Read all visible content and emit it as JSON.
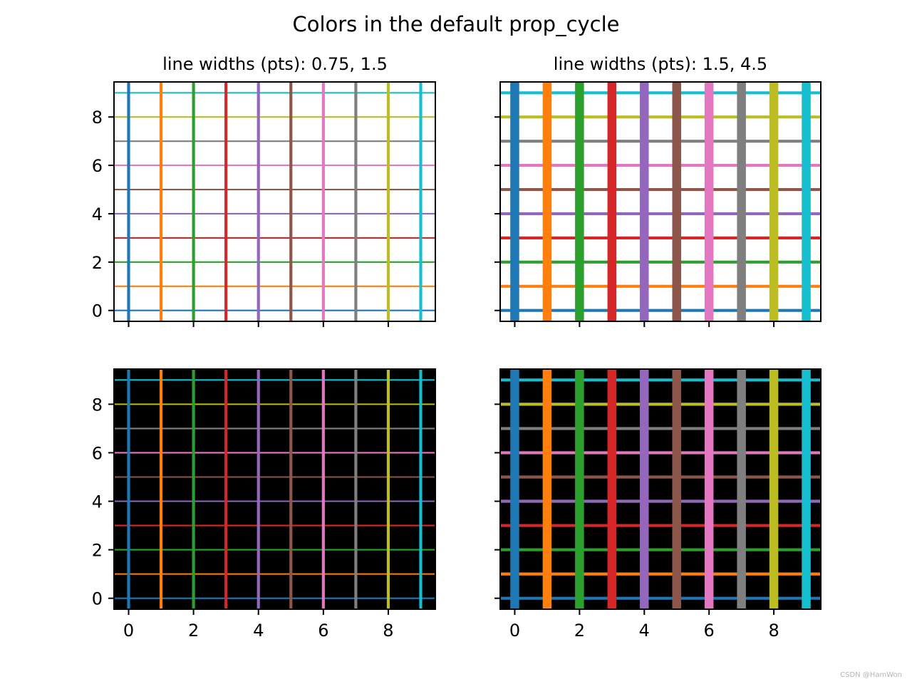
{
  "figure": {
    "title": "Colors in the default prop_cycle",
    "watermark": "CSDN @HamWon"
  },
  "chart_data": [
    {
      "type": "line",
      "title": "line widths (pts): 0.75, 1.5",
      "background": "#ffffff",
      "line_widths_pts": [
        0.75,
        1.5
      ],
      "colors": [
        "#1f77b4",
        "#ff7f0e",
        "#2ca02c",
        "#d62728",
        "#9467bd",
        "#8c564b",
        "#e377c2",
        "#7f7f7f",
        "#bcbd22",
        "#17becf"
      ],
      "hlines_y": [
        0,
        1,
        2,
        3,
        4,
        5,
        6,
        7,
        8,
        9
      ],
      "vlines_x": [
        0,
        1,
        2,
        3,
        4,
        5,
        6,
        7,
        8,
        9
      ],
      "xlim": [
        -0.45,
        9.45
      ],
      "ylim": [
        -0.45,
        9.45
      ],
      "xticks": [
        0,
        2,
        4,
        6,
        8
      ],
      "yticks": [
        0,
        2,
        4,
        6,
        8
      ],
      "show_xticklabels": false,
      "show_yticklabels": true
    },
    {
      "type": "line",
      "title": "line widths (pts): 1.5, 4.5",
      "background": "#ffffff",
      "line_widths_pts": [
        1.5,
        4.5
      ],
      "colors": [
        "#1f77b4",
        "#ff7f0e",
        "#2ca02c",
        "#d62728",
        "#9467bd",
        "#8c564b",
        "#e377c2",
        "#7f7f7f",
        "#bcbd22",
        "#17becf"
      ],
      "hlines_y": [
        0,
        1,
        2,
        3,
        4,
        5,
        6,
        7,
        8,
        9
      ],
      "vlines_x": [
        0,
        1,
        2,
        3,
        4,
        5,
        6,
        7,
        8,
        9
      ],
      "xlim": [
        -0.45,
        9.45
      ],
      "ylim": [
        -0.45,
        9.45
      ],
      "xticks": [
        0,
        2,
        4,
        6,
        8
      ],
      "yticks": [
        0,
        2,
        4,
        6,
        8
      ],
      "show_xticklabels": false,
      "show_yticklabels": false
    },
    {
      "type": "line",
      "title": "",
      "background": "#000000",
      "line_widths_pts": [
        0.75,
        1.5
      ],
      "colors": [
        "#1f77b4",
        "#ff7f0e",
        "#2ca02c",
        "#d62728",
        "#9467bd",
        "#8c564b",
        "#e377c2",
        "#7f7f7f",
        "#bcbd22",
        "#17becf"
      ],
      "hlines_y": [
        0,
        1,
        2,
        3,
        4,
        5,
        6,
        7,
        8,
        9
      ],
      "vlines_x": [
        0,
        1,
        2,
        3,
        4,
        5,
        6,
        7,
        8,
        9
      ],
      "xlim": [
        -0.45,
        9.45
      ],
      "ylim": [
        -0.45,
        9.45
      ],
      "xticks": [
        0,
        2,
        4,
        6,
        8
      ],
      "yticks": [
        0,
        2,
        4,
        6,
        8
      ],
      "show_xticklabels": true,
      "show_yticklabels": true
    },
    {
      "type": "line",
      "title": "",
      "background": "#000000",
      "line_widths_pts": [
        1.5,
        4.5
      ],
      "colors": [
        "#1f77b4",
        "#ff7f0e",
        "#2ca02c",
        "#d62728",
        "#9467bd",
        "#8c564b",
        "#e377c2",
        "#7f7f7f",
        "#bcbd22",
        "#17becf"
      ],
      "hlines_y": [
        0,
        1,
        2,
        3,
        4,
        5,
        6,
        7,
        8,
        9
      ],
      "vlines_x": [
        0,
        1,
        2,
        3,
        4,
        5,
        6,
        7,
        8,
        9
      ],
      "xlim": [
        -0.45,
        9.45
      ],
      "ylim": [
        -0.45,
        9.45
      ],
      "xticks": [
        0,
        2,
        4,
        6,
        8
      ],
      "yticks": [
        0,
        2,
        4,
        6,
        8
      ],
      "show_xticklabels": true,
      "show_yticklabels": false
    }
  ]
}
